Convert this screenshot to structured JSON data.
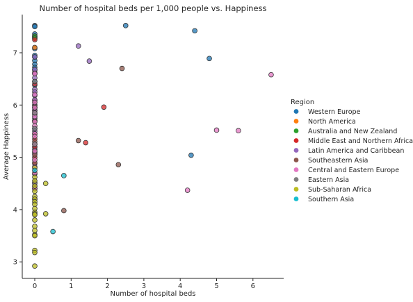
{
  "chart_data": {
    "type": "scatter",
    "title": "Number of hospital beds per 1,000 people vs. Happiness",
    "xlabel": "Number of hospital beds",
    "ylabel": "Average Happiness",
    "xlim": [
      -0.3,
      6.8
    ],
    "ylim": [
      2.65,
      7.75
    ],
    "xticks": [
      0,
      1,
      2,
      3,
      4,
      5,
      6
    ],
    "yticks": [
      3,
      4,
      5,
      6,
      7
    ],
    "grid": false,
    "legend": {
      "title": "Region",
      "placement": "right"
    },
    "series": [
      {
        "name": "Western Europe",
        "color": "#1f77b4",
        "points": [
          [
            0,
            7.52
          ],
          [
            0,
            7.5
          ],
          [
            0,
            7.36
          ],
          [
            0,
            7.32
          ],
          [
            0,
            7.3
          ],
          [
            0,
            7.08
          ],
          [
            0,
            6.95
          ],
          [
            0,
            6.92
          ],
          [
            0,
            6.85
          ],
          [
            0,
            6.78
          ],
          [
            0,
            6.72
          ],
          [
            0,
            6.67
          ],
          [
            0,
            6.45
          ],
          [
            0,
            6.38
          ],
          [
            0,
            5.95
          ],
          [
            0,
            5.55
          ],
          [
            0,
            5.2
          ],
          [
            0,
            5.15
          ],
          [
            2.5,
            7.52
          ],
          [
            4.4,
            7.42
          ],
          [
            4.8,
            6.89
          ],
          [
            4.3,
            5.04
          ]
        ]
      },
      {
        "name": "North America",
        "color": "#ff7f0e",
        "points": [
          [
            0,
            7.28
          ],
          [
            0,
            7.1
          ]
        ]
      },
      {
        "name": "Australia and New Zealand",
        "color": "#2ca02c",
        "points": [
          [
            0,
            7.32
          ],
          [
            0,
            7.28
          ]
        ]
      },
      {
        "name": "Middle East and Northern Africa",
        "color": "#d62728",
        "points": [
          [
            0,
            7.25
          ],
          [
            0,
            6.62
          ],
          [
            0,
            6.4
          ],
          [
            0,
            6.08
          ],
          [
            0,
            5.9
          ],
          [
            0,
            5.45
          ],
          [
            0,
            5.35
          ],
          [
            0,
            5.2
          ],
          [
            0,
            5.1
          ],
          [
            0,
            5.0
          ],
          [
            0,
            4.88
          ],
          [
            0,
            4.45
          ],
          [
            1.9,
            5.96
          ],
          [
            1.4,
            5.28
          ]
        ]
      },
      {
        "name": "Latin America and Caribbean",
        "color": "#9467bd",
        "points": [
          [
            0,
            6.92
          ],
          [
            0,
            6.68
          ],
          [
            0,
            6.6
          ],
          [
            0,
            6.52
          ],
          [
            0,
            6.3
          ],
          [
            0,
            6.25
          ],
          [
            0,
            6.18
          ],
          [
            0,
            6.1
          ],
          [
            0,
            6.0
          ],
          [
            0,
            5.95
          ],
          [
            0,
            5.89
          ],
          [
            0,
            5.82
          ],
          [
            0,
            5.75
          ],
          [
            0,
            5.7
          ],
          [
            0,
            5.5
          ],
          [
            0,
            5.08
          ],
          [
            1.2,
            7.13
          ],
          [
            1.5,
            6.84
          ]
        ]
      },
      {
        "name": "Southeastern Asia",
        "color": "#8c564b",
        "points": [
          [
            0,
            5.98
          ],
          [
            0,
            5.7
          ],
          [
            0,
            5.3
          ],
          [
            0,
            5.05
          ],
          [
            0,
            4.9
          ],
          [
            0,
            4.68
          ],
          [
            0,
            4.4
          ],
          [
            0,
            4.2
          ],
          [
            2.4,
            6.7
          ],
          [
            1.2,
            5.32
          ],
          [
            2.3,
            4.86
          ],
          [
            0.8,
            3.98
          ]
        ]
      },
      {
        "name": "Central and Eastern Europe",
        "color": "#e377c2",
        "points": [
          [
            0,
            6.6
          ],
          [
            0,
            6.2
          ],
          [
            0,
            6.05
          ],
          [
            0,
            5.95
          ],
          [
            0,
            5.85
          ],
          [
            0,
            5.78
          ],
          [
            0,
            5.68
          ],
          [
            0,
            5.6
          ],
          [
            0,
            5.45
          ],
          [
            0,
            5.4
          ],
          [
            0,
            5.25
          ],
          [
            0,
            5.12
          ],
          [
            0,
            4.95
          ],
          [
            0,
            4.82
          ],
          [
            0,
            4.7
          ],
          [
            0,
            4.52
          ],
          [
            0,
            4.4
          ],
          [
            6.5,
            6.58
          ],
          [
            5.0,
            5.52
          ],
          [
            5.6,
            5.51
          ],
          [
            4.2,
            4.37
          ]
        ]
      },
      {
        "name": "Eastern Asia",
        "color": "#7f7f7f",
        "points": [
          [
            0,
            6.45
          ],
          [
            0,
            5.85
          ],
          [
            0,
            5.55
          ],
          [
            0,
            5.25
          ],
          [
            0,
            4.5
          ]
        ]
      },
      {
        "name": "Sub-Saharan Africa",
        "color": "#bcbd22",
        "points": [
          [
            0,
            4.8
          ],
          [
            0,
            4.62
          ],
          [
            0,
            4.55
          ],
          [
            0,
            4.45
          ],
          [
            0,
            4.35
          ],
          [
            0,
            4.25
          ],
          [
            0,
            4.2
          ],
          [
            0,
            4.15
          ],
          [
            0,
            4.1
          ],
          [
            0,
            4.02
          ],
          [
            0,
            3.95
          ],
          [
            0,
            3.92
          ],
          [
            0,
            3.9
          ],
          [
            0,
            3.8
          ],
          [
            0,
            3.68
          ],
          [
            0,
            3.6
          ],
          [
            0,
            3.52
          ],
          [
            0,
            3.5
          ],
          [
            0,
            3.22
          ],
          [
            0,
            3.18
          ],
          [
            0,
            2.92
          ],
          [
            0.3,
            4.5
          ],
          [
            0.3,
            3.92
          ]
        ]
      },
      {
        "name": "Southern Asia",
        "color": "#17becf",
        "points": [
          [
            0,
            4.75
          ],
          [
            0.8,
            4.65
          ],
          [
            0.5,
            3.58
          ]
        ]
      }
    ]
  }
}
